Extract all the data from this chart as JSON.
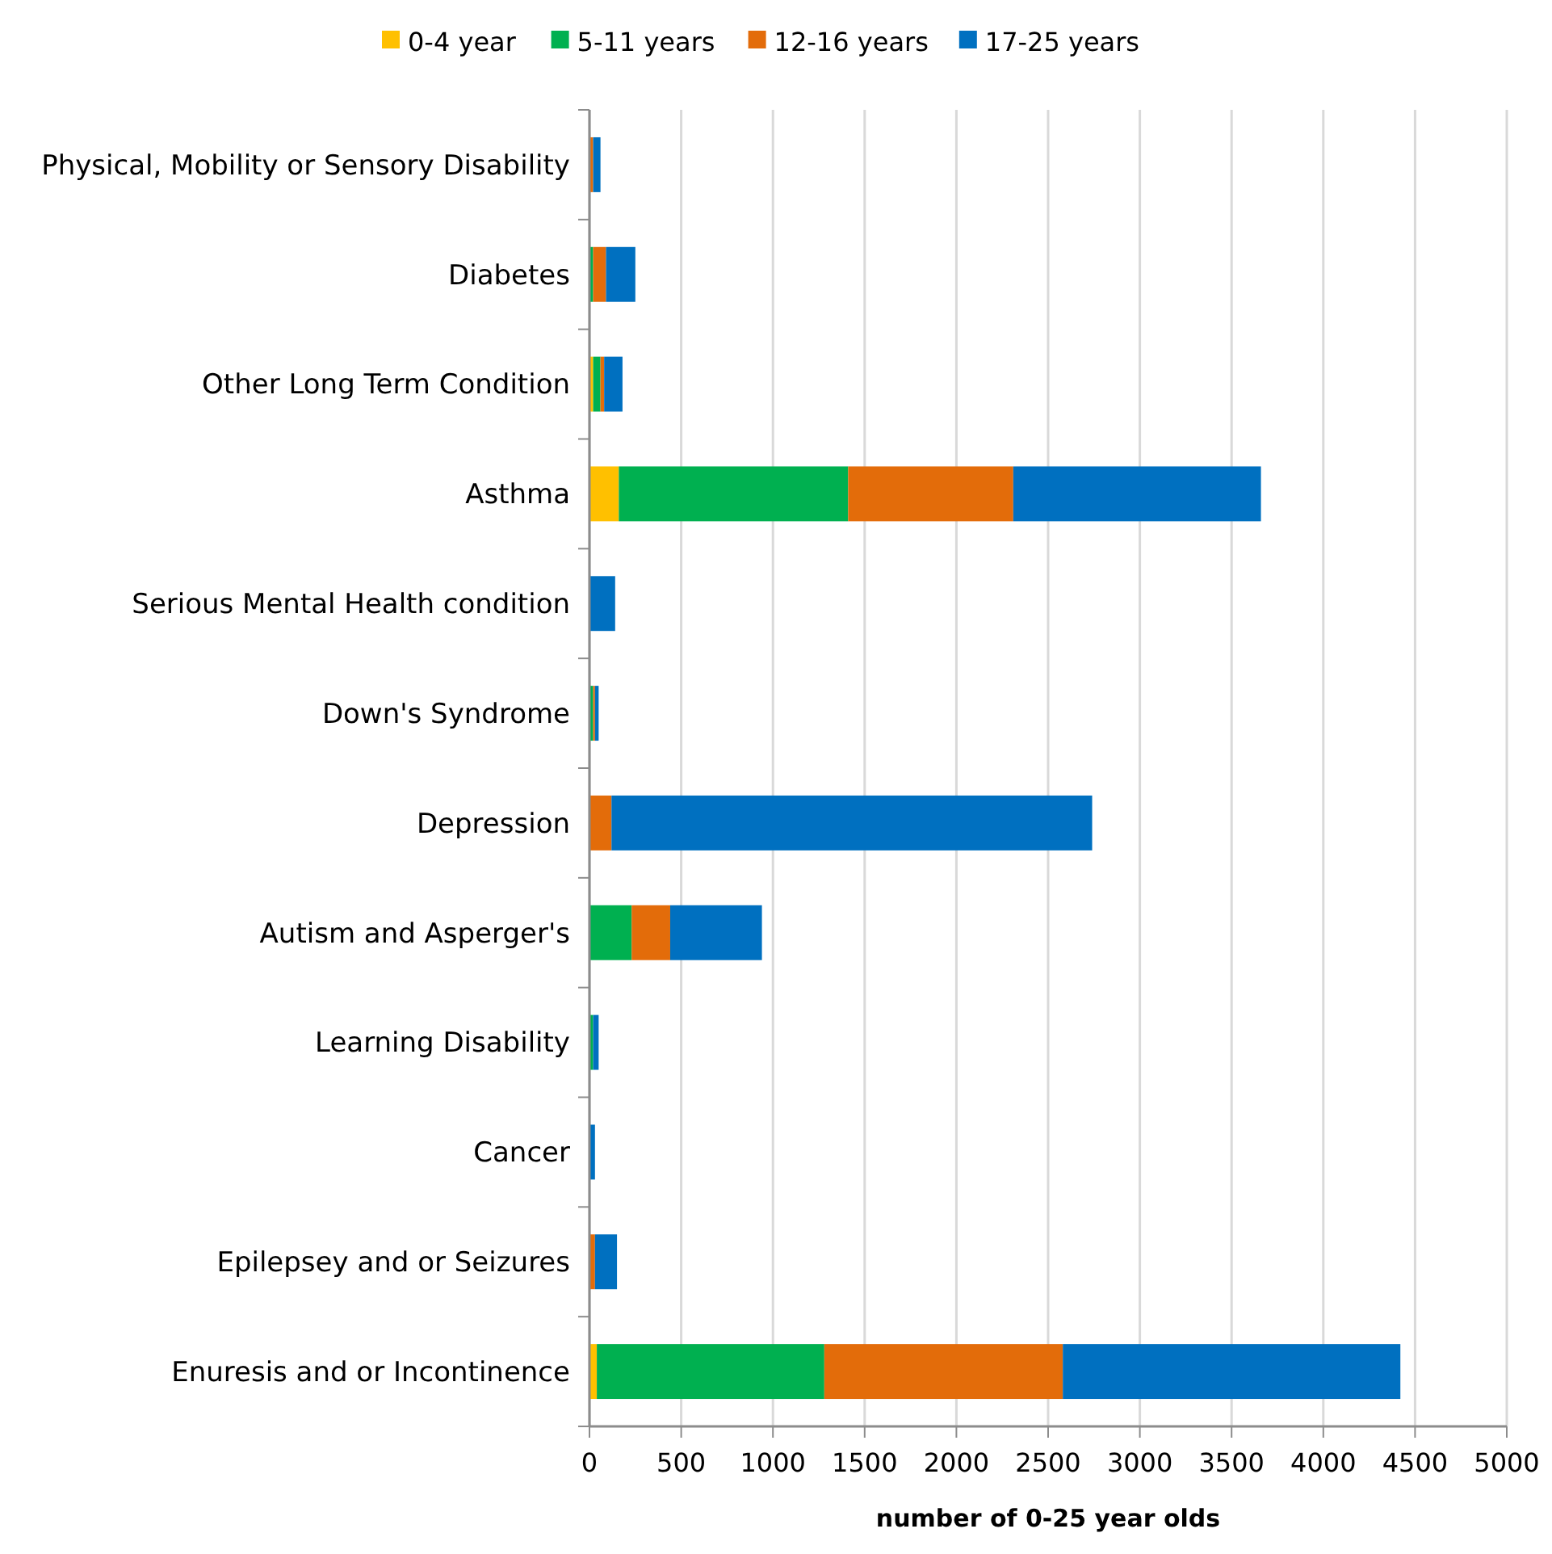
{
  "chart_data": {
    "type": "bar",
    "orientation": "horizontal",
    "stacked": true,
    "xlabel": "number of 0-25 year olds",
    "categories": [
      "Physical, Mobility or Sensory Disability",
      "Diabetes",
      "Other Long Term Condition",
      "Asthma",
      "Serious Mental Health condition",
      "Down's Syndrome",
      "Depression",
      "Autism and Asperger's",
      "Learning Disability",
      "Cancer",
      "Epilepsey and or Seizures",
      "Enuresis and or Incontinence"
    ],
    "series": [
      {
        "name": "0-4 year",
        "color": "#ffc000",
        "values": [
          null,
          null,
          20,
          160,
          null,
          null,
          null,
          null,
          null,
          null,
          null,
          40
        ]
      },
      {
        "name": "5-11 years",
        "color": "#00b050",
        "values": [
          null,
          20,
          40,
          1250,
          null,
          20,
          null,
          230,
          20,
          null,
          null,
          1240
        ]
      },
      {
        "name": "12-16 years",
        "color": "#e36c0a",
        "values": [
          20,
          70,
          20,
          900,
          null,
          10,
          120,
          210,
          null,
          null,
          30,
          1300
        ]
      },
      {
        "name": "17-25 years",
        "color": "#0070c0",
        "values": [
          40,
          160,
          100,
          1350,
          140,
          20,
          2620,
          500,
          30,
          30,
          120,
          1840
        ]
      }
    ],
    "xlim": [
      0,
      5000
    ],
    "xticks": [
      0,
      500,
      1000,
      1500,
      2000,
      2500,
      3000,
      3500,
      4000,
      4500,
      5000
    ],
    "grid": "x",
    "legend": "top"
  }
}
